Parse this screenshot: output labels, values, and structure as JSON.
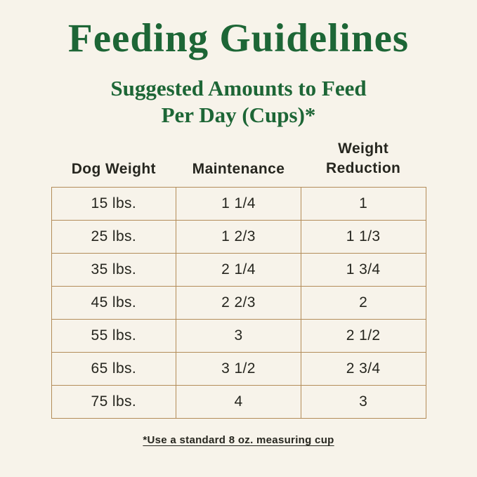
{
  "header": {
    "title": "Feeding Guidelines",
    "subtitle_line1": "Suggested Amounts to Feed",
    "subtitle_line2": "Per Day (Cups)*"
  },
  "footnote": "*Use a standard 8 oz. measuring cup",
  "colors": {
    "background": "#f7f3ea",
    "heading_green": "#1d6636",
    "table_border": "#b38c59",
    "text_dark": "#26261f"
  },
  "chart_data": {
    "type": "table",
    "title": "Feeding Guidelines",
    "subtitle": "Suggested Amounts to Feed Per Day (Cups)*",
    "columns": [
      "Dog Weight",
      "Maintenance",
      "Weight Reduction"
    ],
    "rows": [
      [
        "15 lbs.",
        "1 1/4",
        "1"
      ],
      [
        "25 lbs.",
        "1 2/3",
        "1 1/3"
      ],
      [
        "35 lbs.",
        "2 1/4",
        "1 3/4"
      ],
      [
        "45 lbs.",
        "2 2/3",
        "2"
      ],
      [
        "55 lbs.",
        "3",
        "2 1/2"
      ],
      [
        "65 lbs.",
        "3 1/2",
        "2 3/4"
      ],
      [
        "75 lbs.",
        "4",
        "3"
      ]
    ],
    "footnote": "*Use a standard 8 oz. measuring cup"
  }
}
